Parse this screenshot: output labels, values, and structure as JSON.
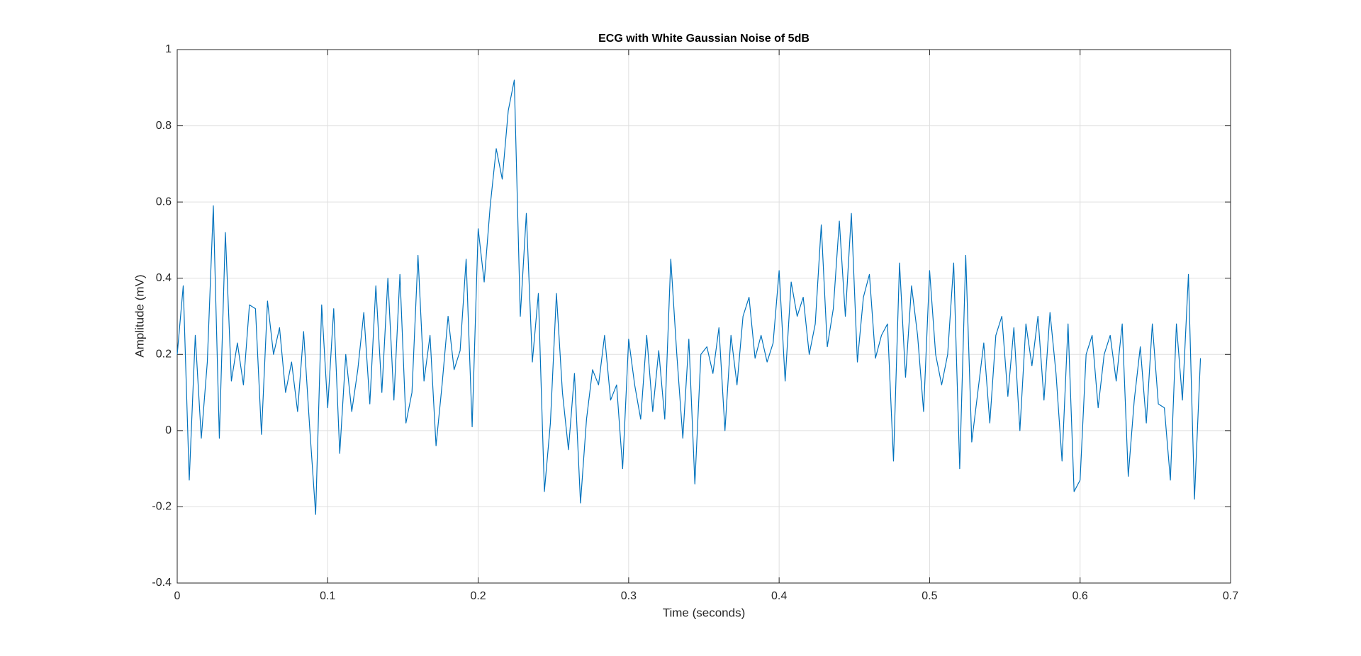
{
  "chart_data": {
    "type": "line",
    "title": "ECG with White Gaussian Noise of 5dB",
    "xlabel": "Time (seconds)",
    "ylabel": "Amplitude (mV)",
    "x": [
      0,
      0.004,
      0.008,
      0.012,
      0.016,
      0.02,
      0.024,
      0.028,
      0.032,
      0.036,
      0.04,
      0.044,
      0.048,
      0.052,
      0.056,
      0.06,
      0.064,
      0.068,
      0.072,
      0.076,
      0.08,
      0.084,
      0.088,
      0.092,
      0.096,
      0.1,
      0.104,
      0.108,
      0.112,
      0.116,
      0.12,
      0.124,
      0.128,
      0.132,
      0.136,
      0.14,
      0.144,
      0.148,
      0.152,
      0.156,
      0.16,
      0.164,
      0.168,
      0.172,
      0.176,
      0.18,
      0.184,
      0.188,
      0.192,
      0.196,
      0.2,
      0.204,
      0.208,
      0.212,
      0.216,
      0.22,
      0.224,
      0.228,
      0.232,
      0.236,
      0.24,
      0.244,
      0.248,
      0.252,
      0.256,
      0.26,
      0.264,
      0.268,
      0.272,
      0.276,
      0.28,
      0.284,
      0.288,
      0.292,
      0.296,
      0.3,
      0.304,
      0.308,
      0.312,
      0.316,
      0.32,
      0.324,
      0.328,
      0.332,
      0.336,
      0.34,
      0.344,
      0.348,
      0.352,
      0.356,
      0.36,
      0.364,
      0.368,
      0.372,
      0.376,
      0.38,
      0.384,
      0.388,
      0.392,
      0.396,
      0.4,
      0.404,
      0.408,
      0.412,
      0.416,
      0.42,
      0.424,
      0.428,
      0.432,
      0.436,
      0.44,
      0.444,
      0.448,
      0.452,
      0.456,
      0.46,
      0.464,
      0.468,
      0.472,
      0.476,
      0.48,
      0.484,
      0.488,
      0.492,
      0.496,
      0.5,
      0.504,
      0.508,
      0.512,
      0.516,
      0.52,
      0.524,
      0.528,
      0.532,
      0.536,
      0.54,
      0.544,
      0.548,
      0.552,
      0.556,
      0.56,
      0.564,
      0.568,
      0.572,
      0.576,
      0.58,
      0.584,
      0.588,
      0.592,
      0.596,
      0.6,
      0.604,
      0.608,
      0.612,
      0.616,
      0.62,
      0.624,
      0.628,
      0.632,
      0.636,
      0.64,
      0.644,
      0.648,
      0.652,
      0.656,
      0.66,
      0.664,
      0.668,
      0.672,
      0.676,
      0.68
    ],
    "series": [
      {
        "color": "#0072bd",
        "values": [
          0.2,
          0.38,
          -0.13,
          0.25,
          -0.02,
          0.18,
          0.59,
          -0.02,
          0.52,
          0.13,
          0.23,
          0.12,
          0.33,
          0.32,
          -0.01,
          0.34,
          0.2,
          0.27,
          0.1,
          0.18,
          0.05,
          0.26,
          0.01,
          -0.22,
          0.33,
          0.06,
          0.32,
          -0.06,
          0.2,
          0.05,
          0.16,
          0.31,
          0.07,
          0.38,
          0.1,
          0.4,
          0.08,
          0.41,
          0.02,
          0.1,
          0.46,
          0.13,
          0.25,
          -0.04,
          0.12,
          0.3,
          0.16,
          0.21,
          0.45,
          0.01,
          0.53,
          0.39,
          0.59,
          0.74,
          0.66,
          0.84,
          0.92,
          0.3,
          0.57,
          0.18,
          0.36,
          -0.16,
          0.02,
          0.36,
          0.1,
          -0.05,
          0.15,
          -0.19,
          0.03,
          0.16,
          0.12,
          0.25,
          0.08,
          0.12,
          -0.1,
          0.24,
          0.12,
          0.03,
          0.25,
          0.05,
          0.21,
          0.03,
          0.45,
          0.2,
          -0.02,
          0.24,
          -0.14,
          0.2,
          0.22,
          0.15,
          0.27,
          0.0,
          0.25,
          0.12,
          0.3,
          0.35,
          0.19,
          0.25,
          0.18,
          0.23,
          0.42,
          0.13,
          0.39,
          0.3,
          0.35,
          0.2,
          0.28,
          0.54,
          0.22,
          0.32,
          0.55,
          0.3,
          0.57,
          0.18,
          0.35,
          0.41,
          0.19,
          0.25,
          0.28,
          -0.08,
          0.44,
          0.14,
          0.38,
          0.25,
          0.05,
          0.42,
          0.2,
          0.12,
          0.2,
          0.44,
          -0.1,
          0.46,
          -0.03,
          0.1,
          0.23,
          0.02,
          0.25,
          0.3,
          0.09,
          0.27,
          0.0,
          0.28,
          0.17,
          0.3,
          0.08,
          0.31,
          0.15,
          -0.08,
          0.28,
          -0.16,
          -0.13,
          0.2,
          0.25,
          0.06,
          0.2,
          0.25,
          0.13,
          0.28,
          -0.12,
          0.08,
          0.22,
          0.02,
          0.28,
          0.07,
          0.06,
          -0.13,
          0.28,
          0.08,
          0.41,
          -0.18,
          0.19
        ]
      }
    ],
    "xlim": [
      0,
      0.7
    ],
    "xticks": [
      0,
      0.1,
      0.2,
      0.3,
      0.4,
      0.5,
      0.6,
      0.7
    ],
    "ylim": [
      -0.4,
      1
    ],
    "yticks": [
      -0.4,
      -0.2,
      0,
      0.2,
      0.4,
      0.6,
      0.8,
      1
    ],
    "grid": true
  }
}
